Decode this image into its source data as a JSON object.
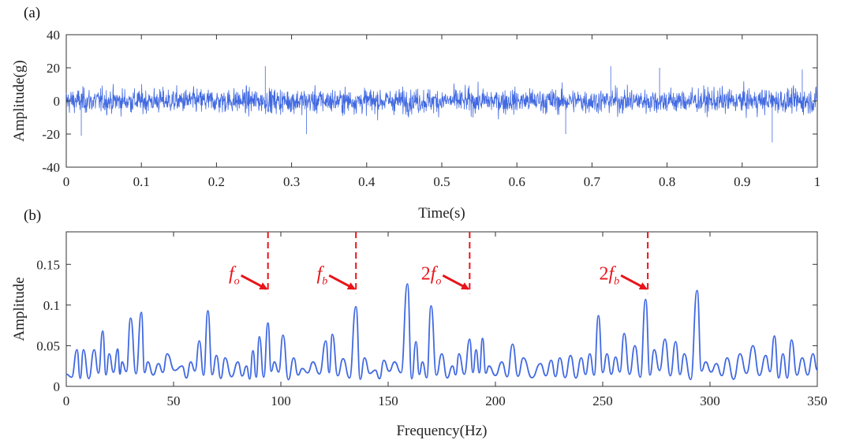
{
  "chart_data": [
    {
      "panel_label": "(a)",
      "type": "line",
      "xlabel": "Time(s)",
      "ylabel": "Amplitude(g)",
      "xlim": [
        0,
        1
      ],
      "ylim": [
        -40,
        40
      ],
      "xticks": [
        0,
        0.1,
        0.2,
        0.3,
        0.4,
        0.5,
        0.6,
        0.7,
        0.8,
        0.9,
        1
      ],
      "xtick_labels": [
        "0",
        "0.1",
        "0.2",
        "0.3",
        "0.4",
        "0.5",
        "0.6",
        "0.7",
        "0.8",
        "0.9",
        "1"
      ],
      "yticks": [
        -40,
        -20,
        0,
        20,
        40
      ],
      "ytick_labels": [
        "-40",
        "-20",
        "0",
        "20",
        "40"
      ],
      "series": [
        {
          "color": "#4169e1",
          "description_values": {
            "typical_envelope": [
              -14,
              14
            ],
            "peak_positive": [
              [
                0.265,
                21
              ],
              [
                0.725,
                21
              ],
              [
                0.79,
                20
              ],
              [
                0.98,
                19
              ]
            ],
            "peak_negative": [
              [
                0.02,
                -21
              ],
              [
                0.32,
                -20
              ],
              [
                0.665,
                -20
              ],
              [
                0.94,
                -25
              ]
            ]
          }
        }
      ],
      "grid": false
    },
    {
      "panel_label": "(b)",
      "type": "line",
      "xlabel": "Frequency(Hz)",
      "ylabel": "Amplitude",
      "xlim": [
        0,
        350
      ],
      "ylim": [
        0,
        0.19
      ],
      "xticks": [
        0,
        50,
        100,
        150,
        200,
        250,
        300,
        350
      ],
      "xtick_labels": [
        "0",
        "50",
        "100",
        "150",
        "200",
        "250",
        "300",
        "350"
      ],
      "yticks": [
        0,
        0.05,
        0.1,
        0.15
      ],
      "ytick_labels": [
        "0",
        "0.05",
        "0.1",
        "0.15"
      ],
      "series": [
        {
          "color": "#4169e1",
          "peaks": [
            [
              5,
              0.045
            ],
            [
              8,
              0.045
            ],
            [
              13,
              0.045
            ],
            [
              17,
              0.068
            ],
            [
              20,
              0.04
            ],
            [
              24,
              0.046
            ],
            [
              26,
              0.03
            ],
            [
              30,
              0.084
            ],
            [
              35,
              0.091
            ],
            [
              38,
              0.03
            ],
            [
              43,
              0.028
            ],
            [
              47,
              0.04
            ],
            [
              54,
              0.025
            ],
            [
              58,
              0.03
            ],
            [
              62,
              0.056
            ],
            [
              66,
              0.093
            ],
            [
              70,
              0.038
            ],
            [
              74,
              0.035
            ],
            [
              80,
              0.03
            ],
            [
              84,
              0.025
            ],
            [
              87,
              0.044
            ],
            [
              90,
              0.061
            ],
            [
              94,
              0.078
            ],
            [
              97,
              0.03
            ],
            [
              101,
              0.063
            ],
            [
              106,
              0.035
            ],
            [
              110,
              0.022
            ],
            [
              115,
              0.03
            ],
            [
              121,
              0.056
            ],
            [
              124,
              0.064
            ],
            [
              129,
              0.034
            ],
            [
              135,
              0.098
            ],
            [
              139,
              0.035
            ],
            [
              144,
              0.02
            ],
            [
              148,
              0.032
            ],
            [
              153,
              0.03
            ],
            [
              159,
              0.126
            ],
            [
              163,
              0.055
            ],
            [
              166,
              0.03
            ],
            [
              170,
              0.099
            ],
            [
              175,
              0.04
            ],
            [
              180,
              0.025
            ],
            [
              183,
              0.04
            ],
            [
              188,
              0.058
            ],
            [
              191,
              0.045
            ],
            [
              194,
              0.059
            ],
            [
              197,
              0.025
            ],
            [
              203,
              0.03
            ],
            [
              208,
              0.052
            ],
            [
              213,
              0.035
            ],
            [
              221,
              0.028
            ],
            [
              226,
              0.032
            ],
            [
              230,
              0.035
            ],
            [
              235,
              0.038
            ],
            [
              240,
              0.035
            ],
            [
              244,
              0.04
            ],
            [
              248,
              0.087
            ],
            [
              252,
              0.04
            ],
            [
              256,
              0.036
            ],
            [
              260,
              0.065
            ],
            [
              265,
              0.05
            ],
            [
              270,
              0.107
            ],
            [
              274,
              0.045
            ],
            [
              279,
              0.058
            ],
            [
              284,
              0.055
            ],
            [
              288,
              0.04
            ],
            [
              294,
              0.118
            ],
            [
              298,
              0.03
            ],
            [
              303,
              0.028
            ],
            [
              308,
              0.035
            ],
            [
              314,
              0.04
            ],
            [
              320,
              0.05
            ],
            [
              326,
              0.038
            ],
            [
              330,
              0.062
            ],
            [
              334,
              0.04
            ],
            [
              338,
              0.057
            ],
            [
              343,
              0.035
            ],
            [
              348,
              0.04
            ]
          ]
        }
      ],
      "annotations": [
        {
          "base": "f",
          "sub": "o",
          "prefix": "",
          "x": 94,
          "arrow_to_y": 0.118
        },
        {
          "base": "f",
          "sub": "b",
          "prefix": "",
          "x": 135,
          "arrow_to_y": 0.118
        },
        {
          "base": "f",
          "sub": "o",
          "prefix": "2",
          "x": 188,
          "arrow_to_y": 0.118
        },
        {
          "base": "f",
          "sub": "b",
          "prefix": "2",
          "x": 271,
          "arrow_to_y": 0.118
        }
      ],
      "marker_color": "#e8141a",
      "grid": false
    }
  ]
}
